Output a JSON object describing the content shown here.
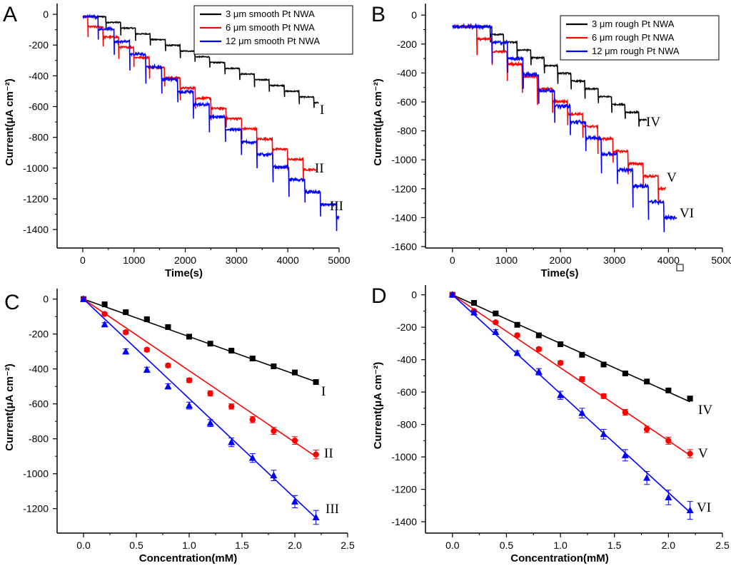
{
  "figure": {
    "stray_marker": "square"
  },
  "colors": {
    "black": "#000000",
    "red": "#ff0000",
    "blue": "#0000ff"
  },
  "chart_data": [
    {
      "panel": "A",
      "type": "line",
      "xlabel": "Time(s)",
      "ylabel": "Current(μA cm⁻²)",
      "xlim": [
        -500,
        5000
      ],
      "ylim": [
        -1520,
        70
      ],
      "xticks": [
        0,
        1000,
        2000,
        3000,
        4000,
        5000
      ],
      "yticks": [
        0,
        -200,
        -400,
        -600,
        -800,
        -1000,
        -1200,
        -1400
      ],
      "legend": {
        "position": "top-right"
      },
      "series": [
        {
          "name": "3 μm smooth Pt NWA",
          "label": "I",
          "color": "#000000",
          "t0": 0,
          "t1": 4600,
          "first_step": 450,
          "step_every": 290,
          "step_size": -35,
          "start": -15,
          "end": -575
        },
        {
          "name": "6 μm smooth Pt NWA",
          "label": "II",
          "color": "#ff0000",
          "t0": 0,
          "t1": 4550,
          "first_step": 100,
          "step_every": 300,
          "step_size": -70,
          "start": -15,
          "end": -1010
        },
        {
          "name": "12 μm smooth Pt NWA",
          "label": "III",
          "color": "#0000ff",
          "t0": 0,
          "t1": 5000,
          "first_step": 300,
          "step_every": 310,
          "step_size": -90,
          "start": -15,
          "end": -1320
        }
      ]
    },
    {
      "panel": "B",
      "type": "line",
      "xlabel": "Time(s)",
      "ylabel": "Current(μA cm⁻²)",
      "xlim": [
        -500,
        5000
      ],
      "ylim": [
        -1610,
        80
      ],
      "xticks": [
        0,
        1000,
        2000,
        3000,
        4000,
        5000
      ],
      "yticks": [
        0,
        -200,
        -400,
        -600,
        -800,
        -1000,
        -1200,
        -1400,
        -1600
      ],
      "legend": {
        "position": "top-right"
      },
      "series": [
        {
          "name": "3 μm rough Pt NWA",
          "label": "IV",
          "color": "#000000",
          "t0": 0,
          "t1": 3600,
          "first_step": 700,
          "step_every": 250,
          "step_size": -55,
          "start": -80,
          "end": -725
        },
        {
          "name": "6 μm rough Pt NWA",
          "label": "V",
          "color": "#ff0000",
          "t0": 0,
          "t1": 3950,
          "first_step": 450,
          "step_every": 280,
          "step_size": -95,
          "start": -80,
          "end": -1200
        },
        {
          "name": "12 μm rough Pt NWA",
          "label": "VI",
          "color": "#0000ff",
          "t0": 0,
          "t1": 4150,
          "first_step": 730,
          "step_every": 290,
          "step_size": -115,
          "start": -80,
          "end": -1400
        }
      ]
    },
    {
      "panel": "C",
      "type": "scatter",
      "xlabel": "Concentration(mM)",
      "ylabel": "Current(μA cm⁻²)",
      "xlim": [
        -0.25,
        2.5
      ],
      "ylim": [
        -1340,
        60
      ],
      "xticks": [
        0.0,
        0.5,
        1.0,
        1.5,
        2.0,
        2.5
      ],
      "yticks": [
        0,
        -200,
        -400,
        -600,
        -800,
        -1000,
        -1200
      ],
      "x": [
        0,
        0.2,
        0.4,
        0.6,
        0.8,
        1.0,
        1.2,
        1.4,
        1.6,
        1.8,
        2.0,
        2.2
      ],
      "series": [
        {
          "label": "I",
          "color": "#000000",
          "marker": "square",
          "values": [
            0,
            -30,
            -75,
            -115,
            -160,
            -215,
            -255,
            -295,
            -340,
            -385,
            -420,
            -475
          ],
          "fit_slope": -215,
          "errors": [
            5,
            5,
            5,
            5,
            5,
            5,
            5,
            5,
            8,
            8,
            10,
            12
          ]
        },
        {
          "label": "II",
          "color": "#ff0000",
          "marker": "circle",
          "values": [
            0,
            -85,
            -190,
            -290,
            -380,
            -465,
            -540,
            -615,
            -690,
            -755,
            -810,
            -890
          ],
          "fit_slope": -410,
          "errors": [
            5,
            8,
            10,
            10,
            10,
            12,
            15,
            15,
            18,
            20,
            22,
            25
          ]
        },
        {
          "label": "III",
          "color": "#0000ff",
          "marker": "triangle",
          "values": [
            0,
            -145,
            -300,
            -405,
            -500,
            -610,
            -710,
            -820,
            -910,
            -1010,
            -1160,
            -1250
          ],
          "fit_slope": -570,
          "errors": [
            8,
            10,
            15,
            15,
            15,
            20,
            20,
            25,
            25,
            30,
            35,
            40
          ]
        }
      ]
    },
    {
      "panel": "D",
      "type": "scatter",
      "xlabel": "Concentration(mM)",
      "ylabel": "Current(μA cm⁻²)",
      "xlim": [
        -0.25,
        2.5
      ],
      "ylim": [
        -1470,
        60
      ],
      "xticks": [
        0.0,
        0.5,
        1.0,
        1.5,
        2.0,
        2.5
      ],
      "yticks": [
        0,
        -200,
        -400,
        -600,
        -800,
        -1000,
        -1200,
        -1400
      ],
      "x": [
        0,
        0.2,
        0.4,
        0.6,
        0.8,
        1.0,
        1.2,
        1.4,
        1.6,
        1.8,
        2.0,
        2.2
      ],
      "series": [
        {
          "label": "IV",
          "color": "#000000",
          "marker": "square",
          "values": [
            0,
            -50,
            -115,
            -185,
            -250,
            -305,
            -370,
            -430,
            -485,
            -535,
            -590,
            -640
          ],
          "fit_slope": -300,
          "errors": [
            5,
            5,
            5,
            5,
            5,
            5,
            5,
            5,
            8,
            8,
            10,
            15
          ]
        },
        {
          "label": "V",
          "color": "#ff0000",
          "marker": "circle",
          "values": [
            0,
            -100,
            -170,
            -250,
            -335,
            -420,
            -520,
            -625,
            -725,
            -830,
            -900,
            -980
          ],
          "fit_slope": -450,
          "errors": [
            5,
            8,
            8,
            10,
            10,
            12,
            15,
            15,
            18,
            20,
            22,
            25
          ]
        },
        {
          "label": "VI",
          "color": "#0000ff",
          "marker": "triangle",
          "values": [
            0,
            -110,
            -230,
            -360,
            -475,
            -620,
            -730,
            -860,
            -990,
            -1130,
            -1250,
            -1330
          ],
          "fit_slope": -610,
          "errors": [
            8,
            10,
            15,
            15,
            20,
            25,
            30,
            30,
            35,
            40,
            45,
            55
          ]
        }
      ]
    }
  ]
}
